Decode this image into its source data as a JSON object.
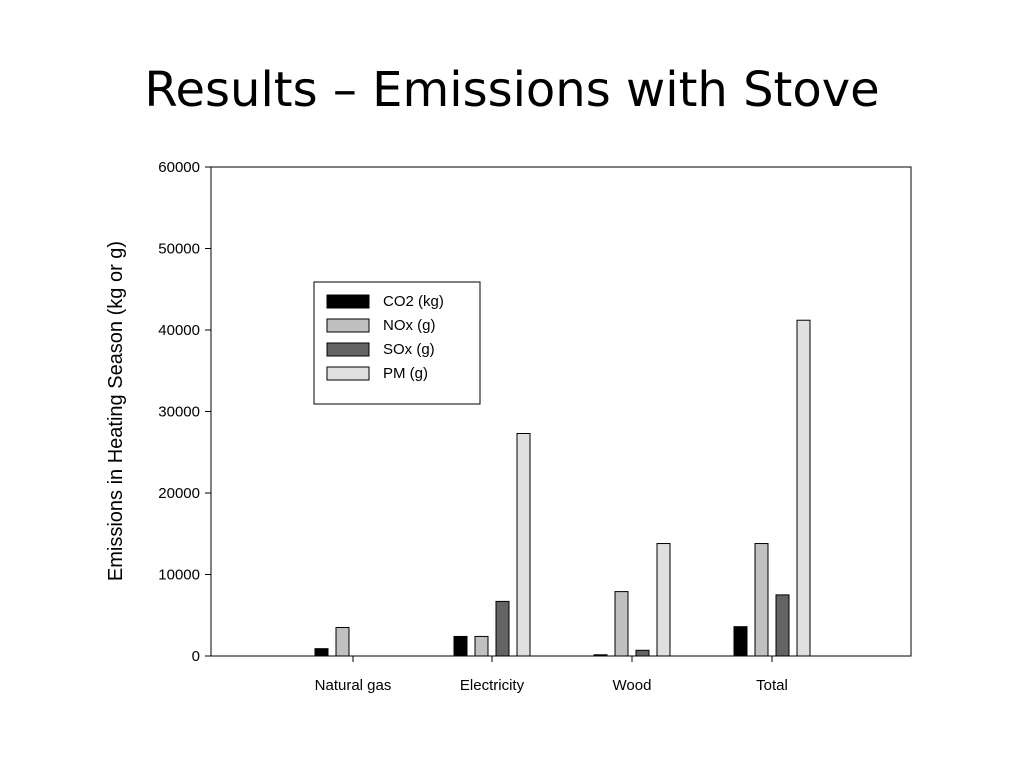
{
  "slide": {
    "title": "Results – Emissions with Stove"
  },
  "chart_data": {
    "type": "bar",
    "title": "",
    "xlabel": "",
    "ylabel": "Emissions in Heating Season (kg or g)",
    "categories": [
      "Natural gas",
      "Electricity",
      "Wood",
      "Total"
    ],
    "ylim": [
      0,
      60000
    ],
    "yticks": [
      0,
      10000,
      20000,
      30000,
      40000,
      50000,
      60000
    ],
    "grid": false,
    "legend_position": "upper-left",
    "series": [
      {
        "name": "CO2 (kg)",
        "color": "#000000",
        "values": [
          900,
          2400,
          150,
          3600
        ]
      },
      {
        "name": "NOx (g)",
        "color": "#c0c0c0",
        "values": [
          3500,
          2400,
          7900,
          13800
        ]
      },
      {
        "name": "SOx (g)",
        "color": "#646464",
        "values": [
          0,
          6700,
          700,
          7500
        ]
      },
      {
        "name": "PM (g)",
        "color": "#e0e0e0",
        "values": [
          0,
          27300,
          13800,
          41200
        ]
      }
    ]
  }
}
